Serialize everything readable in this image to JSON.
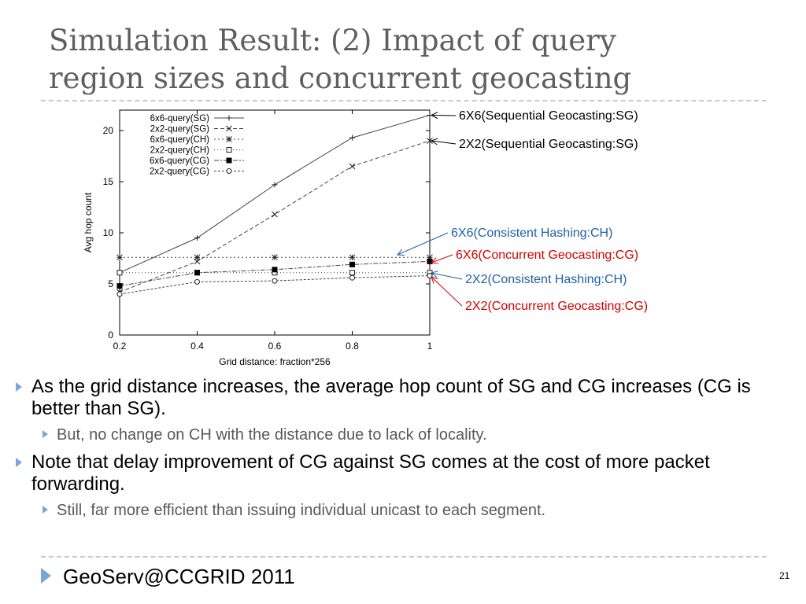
{
  "slide": {
    "title_line1": "Simulation Result: (2) Impact of query",
    "title_line2": "region sizes and concurrent geocasting",
    "footer": "GeoServ@CCGRID 2011",
    "page_number": "21",
    "accent_color": "#7aa6d8"
  },
  "bullets": [
    {
      "text": "As the grid distance increases, the average hop count of SG and CG increases (CG is better than SG).",
      "sub": "But, no change on CH with the distance due to lack of locality."
    },
    {
      "text": "Note that delay improvement of CG against SG comes at the cost of more packet forwarding.",
      "sub": "Still, far more efficient than issuing individual unicast to each segment."
    }
  ],
  "chart_data": {
    "type": "line",
    "xlabel": "Grid distance: fraction*256",
    "ylabel": "Avg hop count",
    "xlim": [
      0.2,
      1.0
    ],
    "ylim": [
      0,
      22
    ],
    "x": [
      0.2,
      0.4,
      0.6,
      0.8,
      1.0
    ],
    "x_ticks": [
      "0.2",
      "0.4",
      "0.6",
      "0.8",
      "1"
    ],
    "y_ticks": [
      0,
      5,
      10,
      15,
      20
    ],
    "grid": false,
    "legend_position": "top-left",
    "series": [
      {
        "name": "6x6-query(SG)",
        "values": [
          6.1,
          9.5,
          14.7,
          19.3,
          21.5
        ],
        "marker": "plus",
        "dash": "",
        "color": "#333333"
      },
      {
        "name": "2x2-query(SG)",
        "values": [
          4.2,
          7.2,
          11.8,
          16.5,
          19.0
        ],
        "marker": "x",
        "dash": "5,3",
        "color": "#333333"
      },
      {
        "name": "6x6-query(CH)",
        "values": [
          7.6,
          7.6,
          7.6,
          7.6,
          7.6
        ],
        "marker": "star",
        "dash": "2,3",
        "color": "#333333"
      },
      {
        "name": "2x2-query(CH)",
        "values": [
          6.1,
          6.1,
          6.1,
          6.1,
          6.1
        ],
        "marker": "square-open",
        "dash": "1,3",
        "color": "#333333"
      },
      {
        "name": "6x6-query(CG)",
        "values": [
          4.8,
          6.1,
          6.4,
          6.9,
          7.2
        ],
        "marker": "square-filled",
        "dash": "6,2,2,2",
        "color": "#333333"
      },
      {
        "name": "2x2-query(CG)",
        "values": [
          4.0,
          5.2,
          5.3,
          5.6,
          5.8
        ],
        "marker": "circle-open",
        "dash": "3,2",
        "color": "#333333"
      }
    ],
    "annotations": [
      {
        "text": "6X6(Sequential Geocasting:SG)",
        "color": "#000000",
        "series_index": 0
      },
      {
        "text": "2X2(Sequential Geocasting:SG)",
        "color": "#000000",
        "series_index": 1
      },
      {
        "text": "6X6(Consistent Hashing:CH)",
        "color": "#1f5fa8",
        "series_index": 2
      },
      {
        "text": "6X6(Concurrent Geocasting:CG)",
        "color": "#d00000",
        "series_index": 4
      },
      {
        "text": "2X2(Consistent Hashing:CH)",
        "color": "#1f5fa8",
        "series_index": 3
      },
      {
        "text": "2X2(Concurrent Geocasting:CG)",
        "color": "#d00000",
        "series_index": 5
      }
    ]
  }
}
